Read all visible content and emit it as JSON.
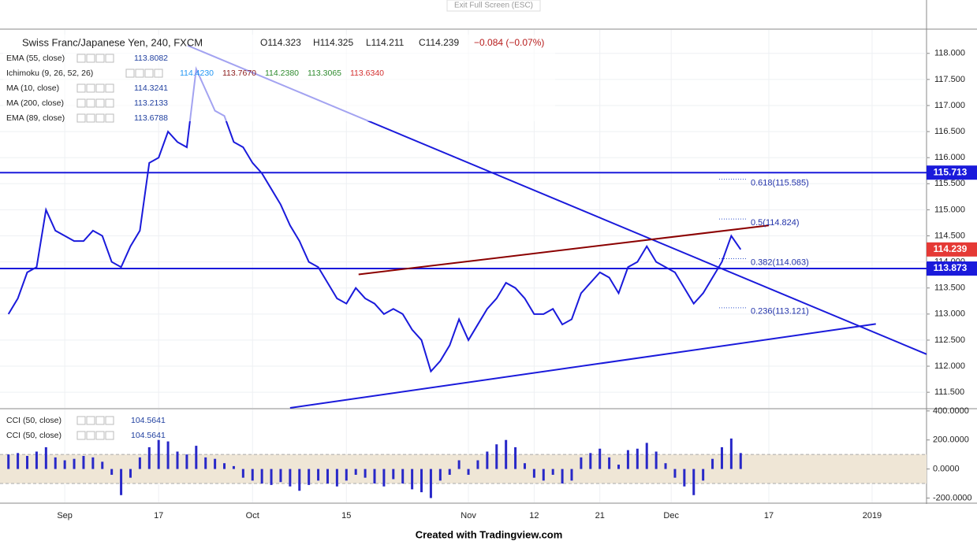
{
  "header": {
    "exit": "Exit Full Screen (ESC)",
    "footer": "Created with Tradingview.com"
  },
  "legend": {
    "title": "Swiss Franc/Japanese Yen, 240, FXCM",
    "ohlc": [
      "O114.323",
      "H114.325",
      "L114.211",
      "C114.239",
      "−0.084 (−0.07%)"
    ],
    "indicators": [
      {
        "name": "EMA (55, close)",
        "values": [
          "113.8082"
        ],
        "colors": [
          "#1f3f9f"
        ]
      },
      {
        "name": "Ichimoku (9, 26, 52, 26)",
        "values": [
          "114.4230",
          "113.7670",
          "114.2380",
          "113.3065",
          "113.6340"
        ],
        "colors": [
          "#2196f3",
          "#8b1a1a",
          "#2e8b2e",
          "#2e8b2e",
          "#d32f2f"
        ]
      },
      {
        "name": "MA (10, close)",
        "values": [
          "114.3241"
        ],
        "colors": [
          "#1f3f9f"
        ]
      },
      {
        "name": "MA (200, close)",
        "values": [
          "113.2133"
        ],
        "colors": [
          "#1f3f9f"
        ]
      },
      {
        "name": "EMA (89, close)",
        "values": [
          "113.6788"
        ],
        "colors": [
          "#1f3f9f"
        ]
      }
    ],
    "cci": [
      {
        "name": "CCI (50, close)",
        "value": "104.5641"
      },
      {
        "name": "CCI (50, close)",
        "value": "104.5641"
      }
    ]
  },
  "chart_data": [
    {
      "type": "line",
      "xlim": [
        -6.9,
        91.8
      ],
      "ylim": [
        111.2,
        118.45
      ],
      "grid": true,
      "x": [
        -6,
        -5,
        -4,
        -3,
        -2,
        -1,
        0,
        1,
        2,
        3,
        4,
        5,
        6,
        7,
        8,
        9,
        10,
        11,
        12,
        13,
        14,
        15,
        16,
        17,
        18,
        19,
        20,
        21,
        22,
        23,
        24,
        25,
        26,
        27,
        28,
        29,
        30,
        31,
        32,
        33,
        34,
        35,
        36,
        37,
        38,
        39,
        40,
        41,
        42,
        43,
        44,
        45,
        46,
        47,
        48,
        49,
        50,
        51,
        52,
        53,
        54,
        55,
        56,
        57,
        58,
        59,
        60,
        61,
        62,
        63,
        64,
        65,
        66,
        67,
        68,
        69,
        70,
        71,
        72
      ],
      "series": [
        {
          "color": "#1a1adb",
          "values": [
            113.0,
            113.3,
            113.8,
            113.9,
            115.0,
            114.6,
            114.5,
            114.4,
            114.4,
            114.6,
            114.5,
            114.0,
            113.9,
            114.3,
            114.6,
            115.9,
            116.0,
            116.5,
            116.3,
            116.2,
            117.7,
            117.3,
            116.9,
            116.8,
            116.3,
            116.2,
            115.9,
            115.7,
            115.4,
            115.1,
            114.7,
            114.4,
            114.0,
            113.9,
            113.6,
            113.3,
            113.2,
            113.5,
            113.3,
            113.2,
            113.0,
            113.1,
            113.0,
            112.7,
            112.5,
            111.9,
            112.1,
            112.4,
            112.9,
            112.5,
            112.8,
            113.1,
            113.3,
            113.6,
            113.5,
            113.3,
            113.0,
            113.0,
            113.1,
            112.8,
            112.9,
            113.4,
            113.6,
            113.8,
            113.7,
            113.4,
            113.9,
            114.0,
            114.3,
            114.0,
            113.9,
            113.8,
            113.5,
            113.2,
            113.4,
            113.7,
            114.0,
            114.5,
            114.239
          ]
        }
      ],
      "hlines": [
        115.713,
        113.873
      ],
      "hline_color": "#1a1adb",
      "last_color": "#e53935",
      "trendlines": [
        {
          "color": "#1a1adb",
          "x": [
            13.1,
            91.8
          ],
          "y": [
            118.15,
            112.23
          ]
        },
        {
          "color": "#1a1adb",
          "x": [
            24.0,
            86.4
          ],
          "y": [
            111.2,
            112.81
          ]
        },
        {
          "color": "#8b0000",
          "x": [
            31.3,
            75.0
          ],
          "y": [
            113.76,
            114.7
          ]
        }
      ],
      "fib": [
        {
          "label": "0.618(115.585)",
          "value": 115.585
        },
        {
          "label": "0.5(114.824)",
          "value": 114.824
        },
        {
          "label": "0.382(114.063)",
          "value": 114.063
        },
        {
          "label": "0.236(113.121)",
          "value": 113.121
        }
      ],
      "xticks": [
        {
          "value": 0,
          "label": "Sep"
        },
        {
          "value": 10,
          "label": "17"
        },
        {
          "value": 20,
          "label": "Oct"
        },
        {
          "value": 30,
          "label": "15"
        },
        {
          "value": 43,
          "label": "Nov"
        },
        {
          "value": 50,
          "label": "12"
        },
        {
          "value": 57,
          "label": "21"
        },
        {
          "value": 64.6,
          "label": "Dec"
        },
        {
          "value": 75,
          "label": "17"
        },
        {
          "value": 86,
          "label": "2019"
        }
      ],
      "yticks": [
        {
          "value": 118,
          "label": "118.000"
        },
        {
          "value": 117.5,
          "label": "117.500"
        },
        {
          "value": 117,
          "label": "117.000"
        },
        {
          "value": 116.5,
          "label": "116.500"
        },
        {
          "value": 116,
          "label": "116.000"
        },
        {
          "value": 115.5,
          "label": "115.500"
        },
        {
          "value": 115,
          "label": "115.000"
        },
        {
          "value": 114.5,
          "label": "114.500"
        },
        {
          "value": 114,
          "label": "114.000"
        },
        {
          "value": 113.5,
          "label": "113.500"
        },
        {
          "value": 113,
          "label": "113.000"
        },
        {
          "value": 112.5,
          "label": "112.500"
        },
        {
          "value": 112,
          "label": "112.000"
        },
        {
          "value": 111.5,
          "label": "111.500"
        }
      ]
    },
    {
      "type": "bar",
      "xlim": [
        -6.9,
        91.8
      ],
      "ylim": [
        -230,
        410
      ],
      "color": "#2828c8",
      "band": [
        -100,
        100
      ],
      "values": [
        100,
        110,
        90,
        120,
        150,
        80,
        60,
        70,
        90,
        80,
        50,
        -40,
        -180,
        -60,
        80,
        150,
        200,
        190,
        120,
        100,
        160,
        80,
        70,
        40,
        20,
        -60,
        -80,
        -100,
        -110,
        -90,
        -120,
        -150,
        -110,
        -80,
        -100,
        -120,
        -80,
        -40,
        -60,
        -100,
        -120,
        -70,
        -100,
        -140,
        -160,
        -200,
        -80,
        -40,
        60,
        -40,
        60,
        120,
        170,
        200,
        150,
        40,
        -60,
        -80,
        -40,
        -100,
        -80,
        80,
        110,
        140,
        80,
        30,
        130,
        140,
        180,
        120,
        40,
        -60,
        -120,
        -180,
        -80,
        70,
        150,
        210,
        110
      ],
      "yticks": [
        {
          "value": 400,
          "label": "400.0000"
        },
        {
          "value": 200,
          "label": "200.0000"
        },
        {
          "value": 0,
          "label": "0.0000"
        },
        {
          "value": -200,
          "label": "-200.0000"
        }
      ]
    }
  ]
}
